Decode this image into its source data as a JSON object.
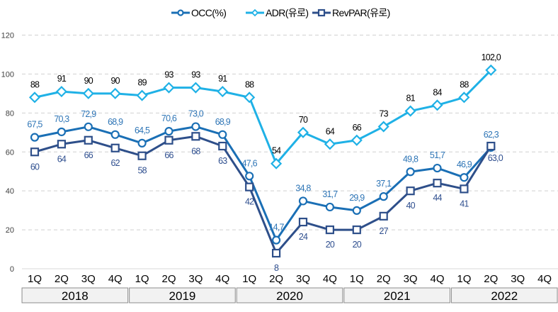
{
  "chart_data": {
    "type": "line",
    "title": "",
    "xlabel": "",
    "ylabel": "",
    "ylim": [
      0,
      120
    ],
    "yticks": [
      0,
      20,
      40,
      60,
      80,
      100,
      120
    ],
    "grid": true,
    "legend_position": "top-center",
    "categories": [
      "1Q",
      "2Q",
      "3Q",
      "4Q",
      "1Q",
      "2Q",
      "3Q",
      "4Q",
      "1Q",
      "2Q",
      "3Q",
      "4Q",
      "1Q",
      "2Q",
      "3Q",
      "4Q",
      "1Q",
      "2Q",
      "3Q",
      "4Q"
    ],
    "groups": [
      {
        "label": "2018",
        "count": 4
      },
      {
        "label": "2019",
        "count": 4
      },
      {
        "label": "2020",
        "count": 4
      },
      {
        "label": "2021",
        "count": 4
      },
      {
        "label": "2022",
        "count": 4
      }
    ],
    "series": [
      {
        "name": "OCC(%)",
        "color": "#1a6fb5",
        "label_color": "#2e75b6",
        "marker": "circle",
        "label_position": "above",
        "values": [
          67.5,
          70.3,
          72.9,
          68.9,
          64.5,
          70.6,
          73.0,
          68.9,
          47.6,
          14.7,
          34.8,
          31.7,
          29.9,
          37.1,
          49.8,
          51.7,
          46.9,
          62.3,
          null,
          null
        ],
        "labels": [
          "67,5",
          "70,3",
          "72,9",
          "68,9",
          "64,5",
          "70,6",
          "73,0",
          "68,9",
          "47,6",
          "14,7",
          "34,8",
          "31,7",
          "29,9",
          "37,1",
          "49,8",
          "51,7",
          "46,9",
          "62,3",
          "",
          ""
        ]
      },
      {
        "name": "ADR(유로)",
        "color": "#1fb1e6",
        "label_color": "#000000",
        "marker": "diamond",
        "label_position": "above",
        "values": [
          88,
          91,
          90,
          90,
          89,
          93,
          93,
          91,
          88,
          54,
          70,
          64,
          66,
          73,
          81,
          84,
          88,
          102.0,
          null,
          null
        ],
        "labels": [
          "88",
          "91",
          "90",
          "90",
          "89",
          "93",
          "93",
          "91",
          "88",
          "54",
          "70",
          "64",
          "66",
          "73",
          "81",
          "84",
          "88",
          "102,0",
          "",
          ""
        ]
      },
      {
        "name": "RevPAR(유로)",
        "color": "#2e4f8a",
        "label_color": "#2f4f8f",
        "marker": "square",
        "label_position": "below",
        "values": [
          60,
          64,
          66,
          62,
          58,
          66,
          68,
          63,
          42,
          8,
          24,
          20,
          20,
          27,
          40,
          44,
          41,
          63.0,
          null,
          null
        ],
        "labels": [
          "60",
          "64",
          "66",
          "62",
          "58",
          "66",
          "68",
          "63",
          "42",
          "8",
          "24",
          "20",
          "20",
          "27",
          "40",
          "44",
          "41",
          "63,0",
          "",
          ""
        ]
      }
    ]
  }
}
